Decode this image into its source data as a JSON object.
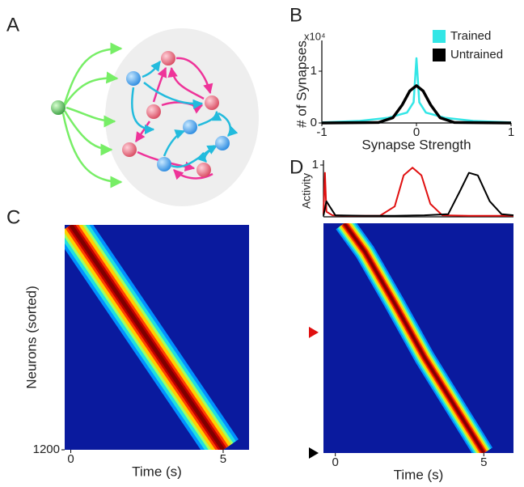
{
  "panel_labels": [
    "A",
    "B",
    "C",
    "D"
  ],
  "chart_data": [
    {
      "type": "line",
      "ylabel": "# of Synapses",
      "xlabel": "Synapse Strength",
      "y_scale_label": "x10⁴",
      "xlim": [
        -1,
        1
      ],
      "xticks": [
        -1,
        0,
        1
      ],
      "ylim": [
        0,
        1.5
      ],
      "yticks": [
        0,
        1
      ],
      "legend": "top-right",
      "series": [
        {
          "name": "Trained",
          "color": "#33e6e6",
          "x": [
            -1,
            -0.6,
            -0.3,
            -0.1,
            -0.03,
            0,
            0.03,
            0.1,
            0.3,
            0.6,
            1
          ],
          "values": [
            0.01,
            0.04,
            0.1,
            0.2,
            0.4,
            1.25,
            0.4,
            0.2,
            0.1,
            0.04,
            0.01
          ]
        },
        {
          "name": "Untrained",
          "color": "#000000",
          "x": [
            -1,
            -0.4,
            -0.25,
            -0.15,
            -0.07,
            0,
            0.07,
            0.15,
            0.25,
            0.4,
            1
          ],
          "values": [
            0,
            0.01,
            0.1,
            0.35,
            0.62,
            0.72,
            0.62,
            0.35,
            0.1,
            0.01,
            0
          ]
        }
      ]
    },
    {
      "type": "heatmap",
      "ylabel": "Neurons (sorted)",
      "xlabel": "Time (s)",
      "xlim": [
        -0.2,
        5.85
      ],
      "xticks": [
        0,
        5
      ],
      "ylim": [
        0,
        1200
      ],
      "yticks": [
        1200
      ],
      "sequence": {
        "x": [
          0,
          5
        ],
        "y": [
          0,
          1200
        ]
      }
    },
    {
      "type": "line",
      "ylabel": "Activity",
      "xlim": [
        -0.4,
        6
      ],
      "ylim": [
        0,
        1
      ],
      "yticks": [
        1
      ],
      "series": [
        {
          "color": "#e01010",
          "x": [
            -0.4,
            -0.35,
            -0.3,
            -0.1,
            0.5,
            1.5,
            2.0,
            2.3,
            2.6,
            2.9,
            3.2,
            3.6,
            4.5,
            6
          ],
          "values": [
            0.05,
            0.85,
            0.1,
            0.03,
            0.02,
            0.02,
            0.2,
            0.8,
            0.95,
            0.8,
            0.25,
            0.03,
            0.02,
            0.02
          ]
        },
        {
          "color": "#000000",
          "x": [
            -0.4,
            -0.3,
            0,
            1,
            2,
            3,
            3.8,
            4.2,
            4.5,
            4.8,
            5.2,
            5.6,
            6
          ],
          "values": [
            0.02,
            0.3,
            0.03,
            0.02,
            0.02,
            0.03,
            0.05,
            0.5,
            0.85,
            0.8,
            0.3,
            0.05,
            0.03
          ]
        }
      ]
    },
    {
      "type": "heatmap",
      "xlabel": "Time (s)",
      "xlim": [
        -0.4,
        6
      ],
      "xticks": [
        0,
        5
      ],
      "ylim": [
        0,
        1200
      ],
      "sequence": {
        "x": [
          0.3,
          1,
          2,
          3,
          4,
          4.6,
          5
        ],
        "y": [
          0,
          150,
          420,
          700,
          950,
          1100,
          1200
        ]
      },
      "markers": [
        {
          "color": "#e01010",
          "y": 570
        },
        {
          "color": "#000000",
          "y": 1200
        }
      ]
    }
  ]
}
